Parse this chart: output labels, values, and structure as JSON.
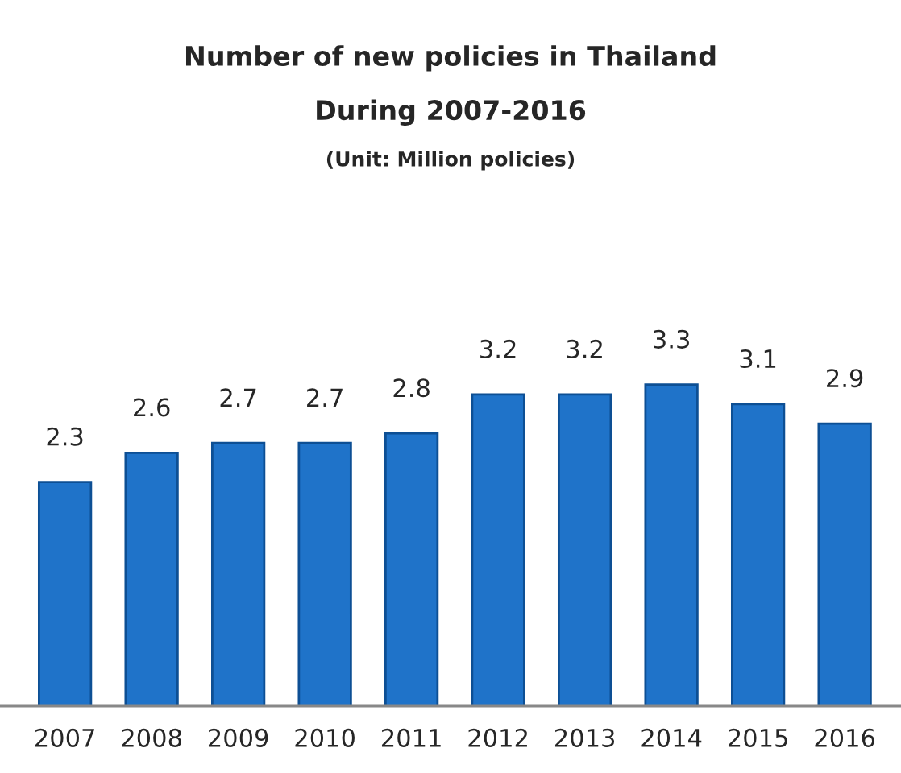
{
  "chart_data": {
    "type": "bar",
    "title": "Number of new policies in Thailand",
    "subtitle": "During 2007-2016",
    "annotations": [
      "(Unit: Million policies)"
    ],
    "categories": [
      "2007",
      "2008",
      "2009",
      "2010",
      "2011",
      "2012",
      "2013",
      "2014",
      "2015",
      "2016"
    ],
    "values": [
      2.3,
      2.6,
      2.7,
      2.7,
      2.8,
      3.2,
      3.2,
      3.3,
      3.1,
      2.9
    ],
    "color": "#1f73c9",
    "data_labels": true,
    "grid": false,
    "legend": false
  }
}
